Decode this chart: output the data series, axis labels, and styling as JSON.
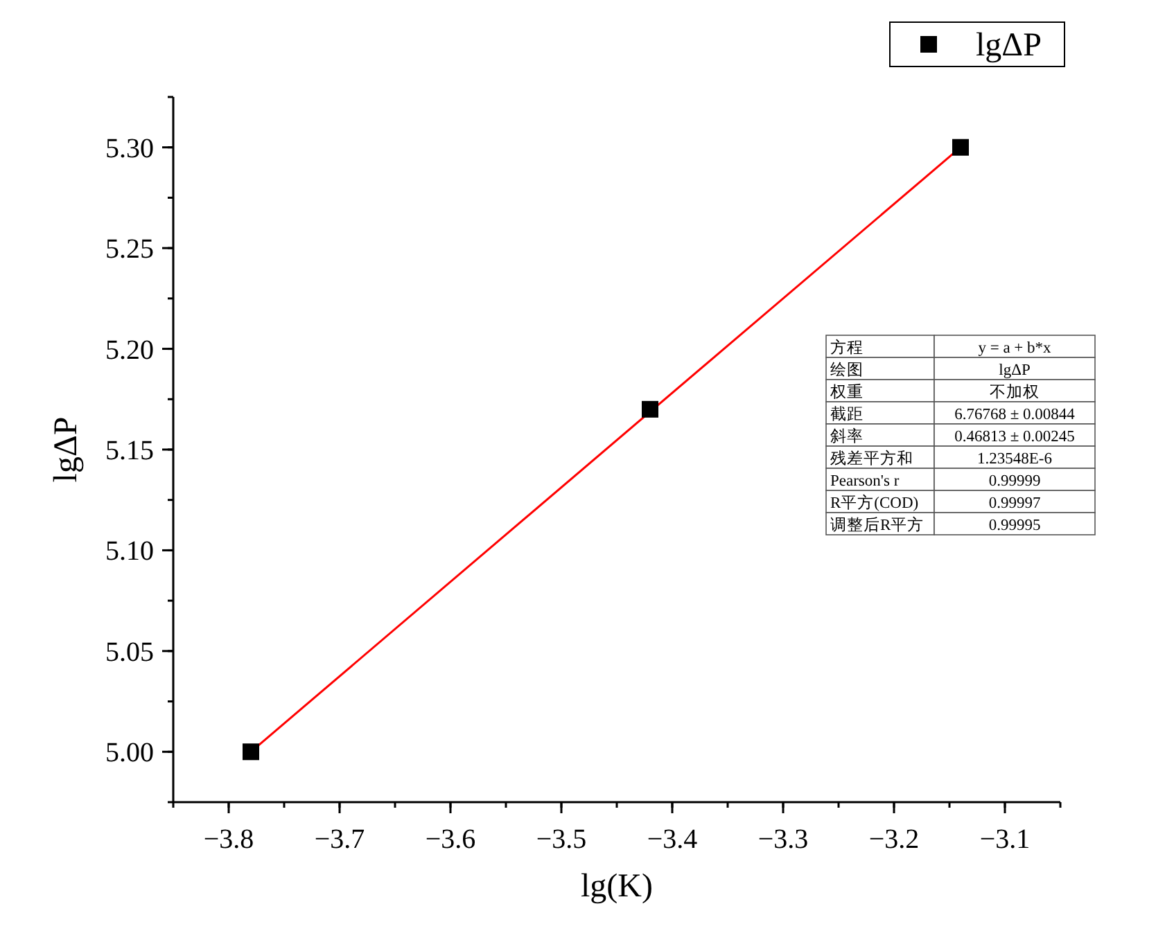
{
  "chart_data": {
    "type": "scatter",
    "xlabel": "lg(K)",
    "ylabel": "lgΔP",
    "x": [
      -3.78,
      -3.42,
      -3.14
    ],
    "series": [
      {
        "name": "lgΔP",
        "color": "#000000",
        "marker": "square",
        "values": [
          5.0,
          5.17,
          5.3
        ]
      },
      {
        "type": "line",
        "color": "#ff0000",
        "x": [
          -3.78,
          -3.14
        ],
        "values": [
          5.0,
          5.3
        ],
        "line_style": "solid"
      }
    ],
    "xlim": [
      -3.85,
      -3.05
    ],
    "xticks": [
      -3.8,
      -3.7,
      -3.6,
      -3.5,
      -3.4,
      -3.3,
      -3.2,
      -3.1
    ],
    "ylim": [
      4.975,
      5.325
    ],
    "yticks": [
      {
        "value": 5.0,
        "label": "5.00"
      },
      {
        "value": 5.05,
        "label": "5.05"
      },
      {
        "value": 5.1,
        "label": "5.10"
      },
      {
        "value": 5.15,
        "label": "5.15"
      },
      {
        "value": 5.2,
        "label": "5.20"
      },
      {
        "value": 5.25,
        "label": "5.25"
      },
      {
        "value": 5.3,
        "label": "5.30"
      }
    ],
    "legend": "top right",
    "grid": false,
    "annotations": [
      "方程",
      "y = a + b*x",
      "绘图",
      "lgΔP",
      "权重",
      "不加权",
      "截距",
      "6.76768 ± 0.00844",
      "斜率",
      "0.46813 ± 0.00245",
      "残差平方和",
      "1.23548E-6",
      "Pearson's r",
      "0.99999",
      "R平方(COD)",
      "0.99997",
      "调整后R平方",
      "0.99995"
    ]
  }
}
